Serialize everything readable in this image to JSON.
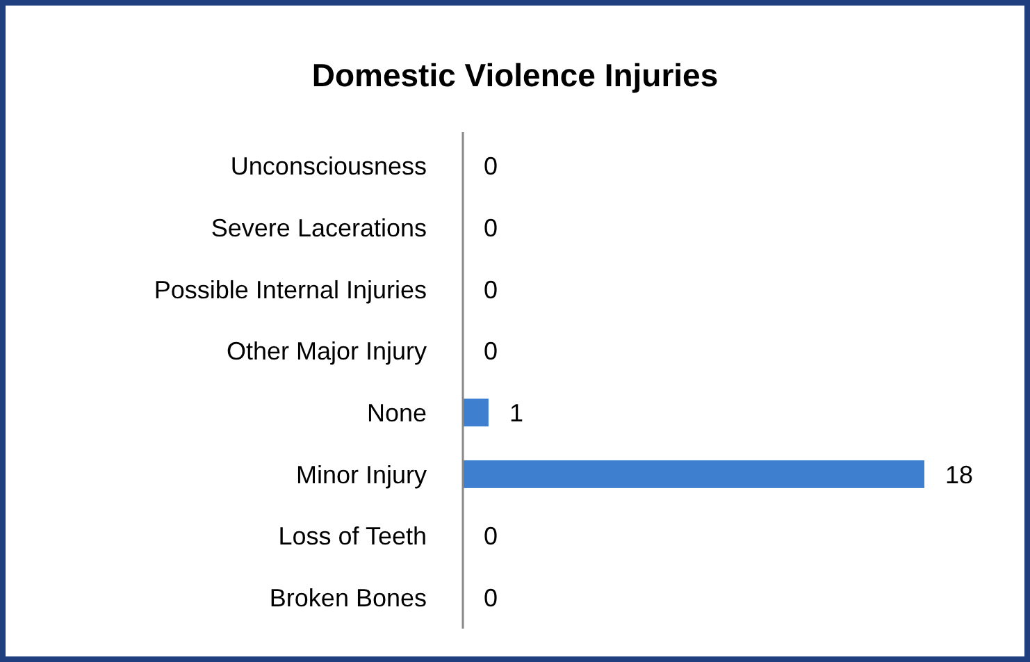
{
  "chart_data": {
    "type": "bar",
    "orientation": "horizontal",
    "title": "Domestic Violence Injuries",
    "categories": [
      "Unconsciousness",
      "Severe Lacerations",
      "Possible Internal Injuries",
      "Other Major Injury",
      "None",
      "Minor Injury",
      "Loss of Teeth",
      "Broken Bones"
    ],
    "values": [
      0,
      0,
      0,
      0,
      1,
      18,
      0,
      0
    ],
    "color": "#3f7fcf",
    "data_labels": true
  }
}
